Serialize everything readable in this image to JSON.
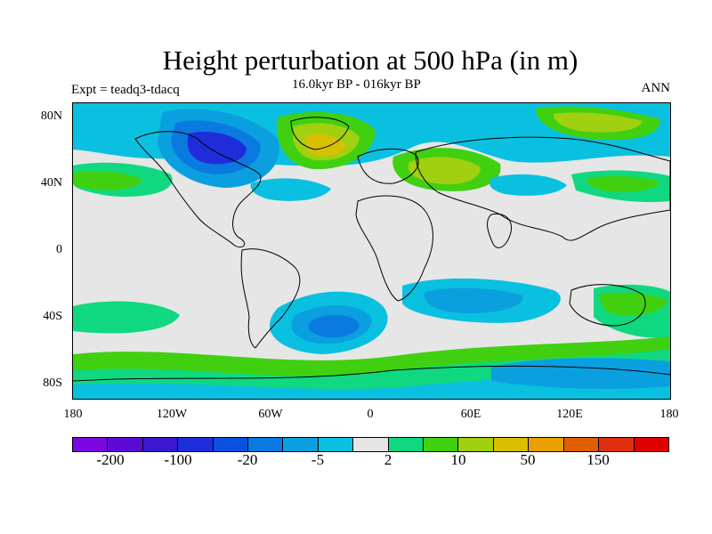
{
  "title": "Height perturbation at 500 hPa (in m)",
  "experiment_label": "Expt = teadq3-tdacq",
  "period_label": "16.0kyr BP - 016kyr BP",
  "season_label": "ANN",
  "lat_labels": [
    "80N",
    "40N",
    "0",
    "40S",
    "80S"
  ],
  "lon_labels": [
    "180",
    "120W",
    "60W",
    "0",
    "60E",
    "120E",
    "180"
  ],
  "colorbar": {
    "colors": [
      "#7d07e0",
      "#5b0ad6",
      "#3a16d0",
      "#1f2cd9",
      "#0a50e0",
      "#0a7ae0",
      "#0aa0e0",
      "#0ac0e0",
      "#e6e6e6",
      "#10d880",
      "#40d010",
      "#a0d010",
      "#d8c000",
      "#e8a000",
      "#e06000",
      "#e03010",
      "#e00000"
    ],
    "labels": [
      "-200",
      "-100",
      "-20",
      "-5",
      "2",
      "10",
      "50",
      "150"
    ]
  },
  "map": {
    "background_color": "#e6e6e6",
    "coastline_color": "#000000"
  }
}
